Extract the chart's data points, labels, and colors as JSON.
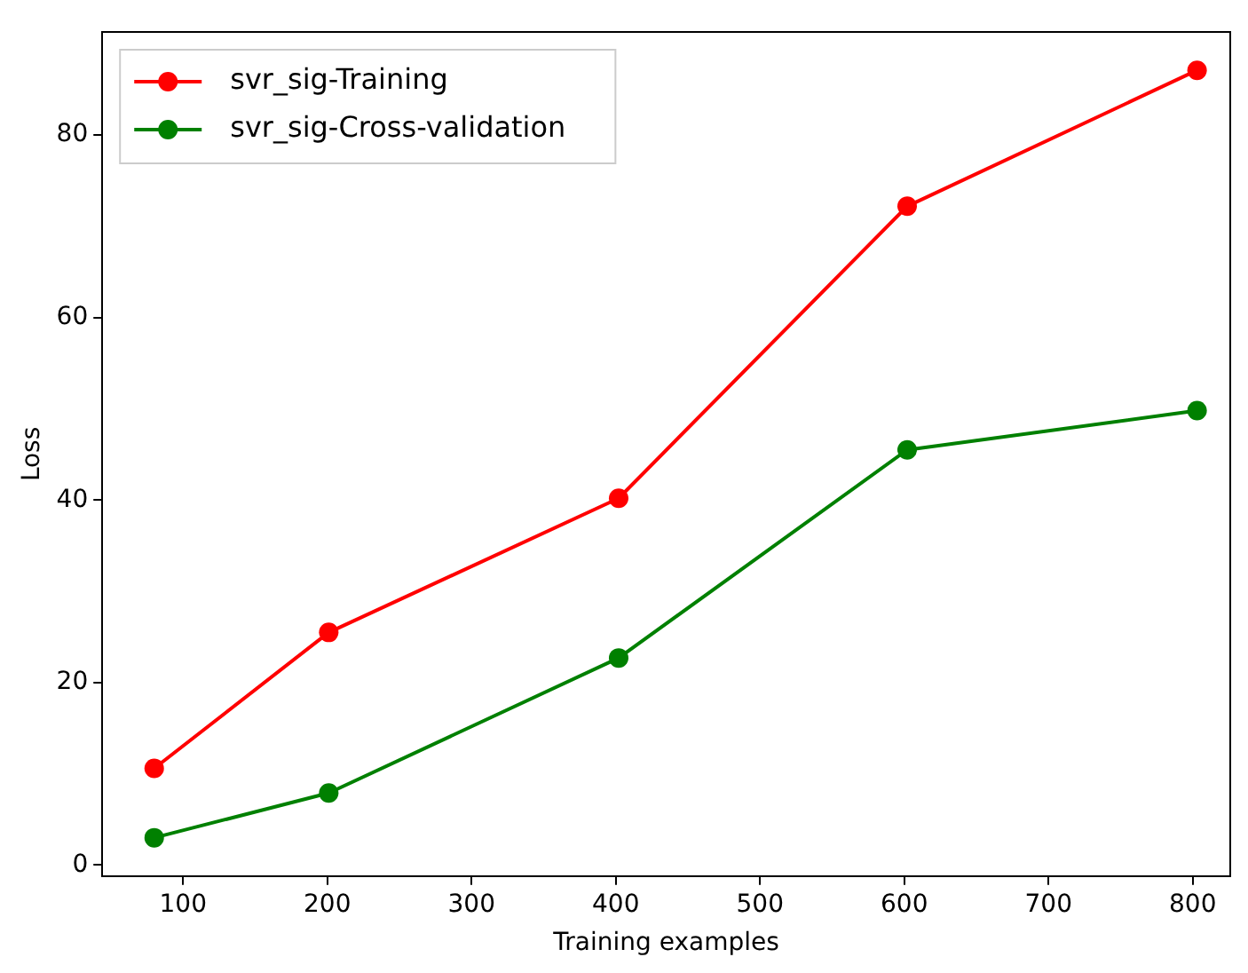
{
  "chart_data": {
    "type": "line",
    "xlabel": "Training examples",
    "ylabel": "Loss",
    "x": [
      80,
      201,
      402,
      602,
      803
    ],
    "series": [
      {
        "name": "svr_sig-Training",
        "color": "#ff0000",
        "values": [
          10.6,
          25.5,
          40.2,
          72.2,
          87.1
        ]
      },
      {
        "name": "svr_sig-Cross-validation",
        "color": "#008000",
        "values": [
          3.0,
          7.9,
          22.7,
          45.5,
          49.8
        ]
      }
    ],
    "xlim": [
      44,
      826
    ],
    "xticks": [
      100,
      200,
      300,
      400,
      500,
      600,
      700,
      800
    ],
    "ylim": [
      -1.2,
      91.3
    ],
    "yticks": [
      0,
      20,
      40,
      60,
      80
    ],
    "grid": false,
    "legend": "top left",
    "marker": "circle",
    "line_style": "solid"
  }
}
